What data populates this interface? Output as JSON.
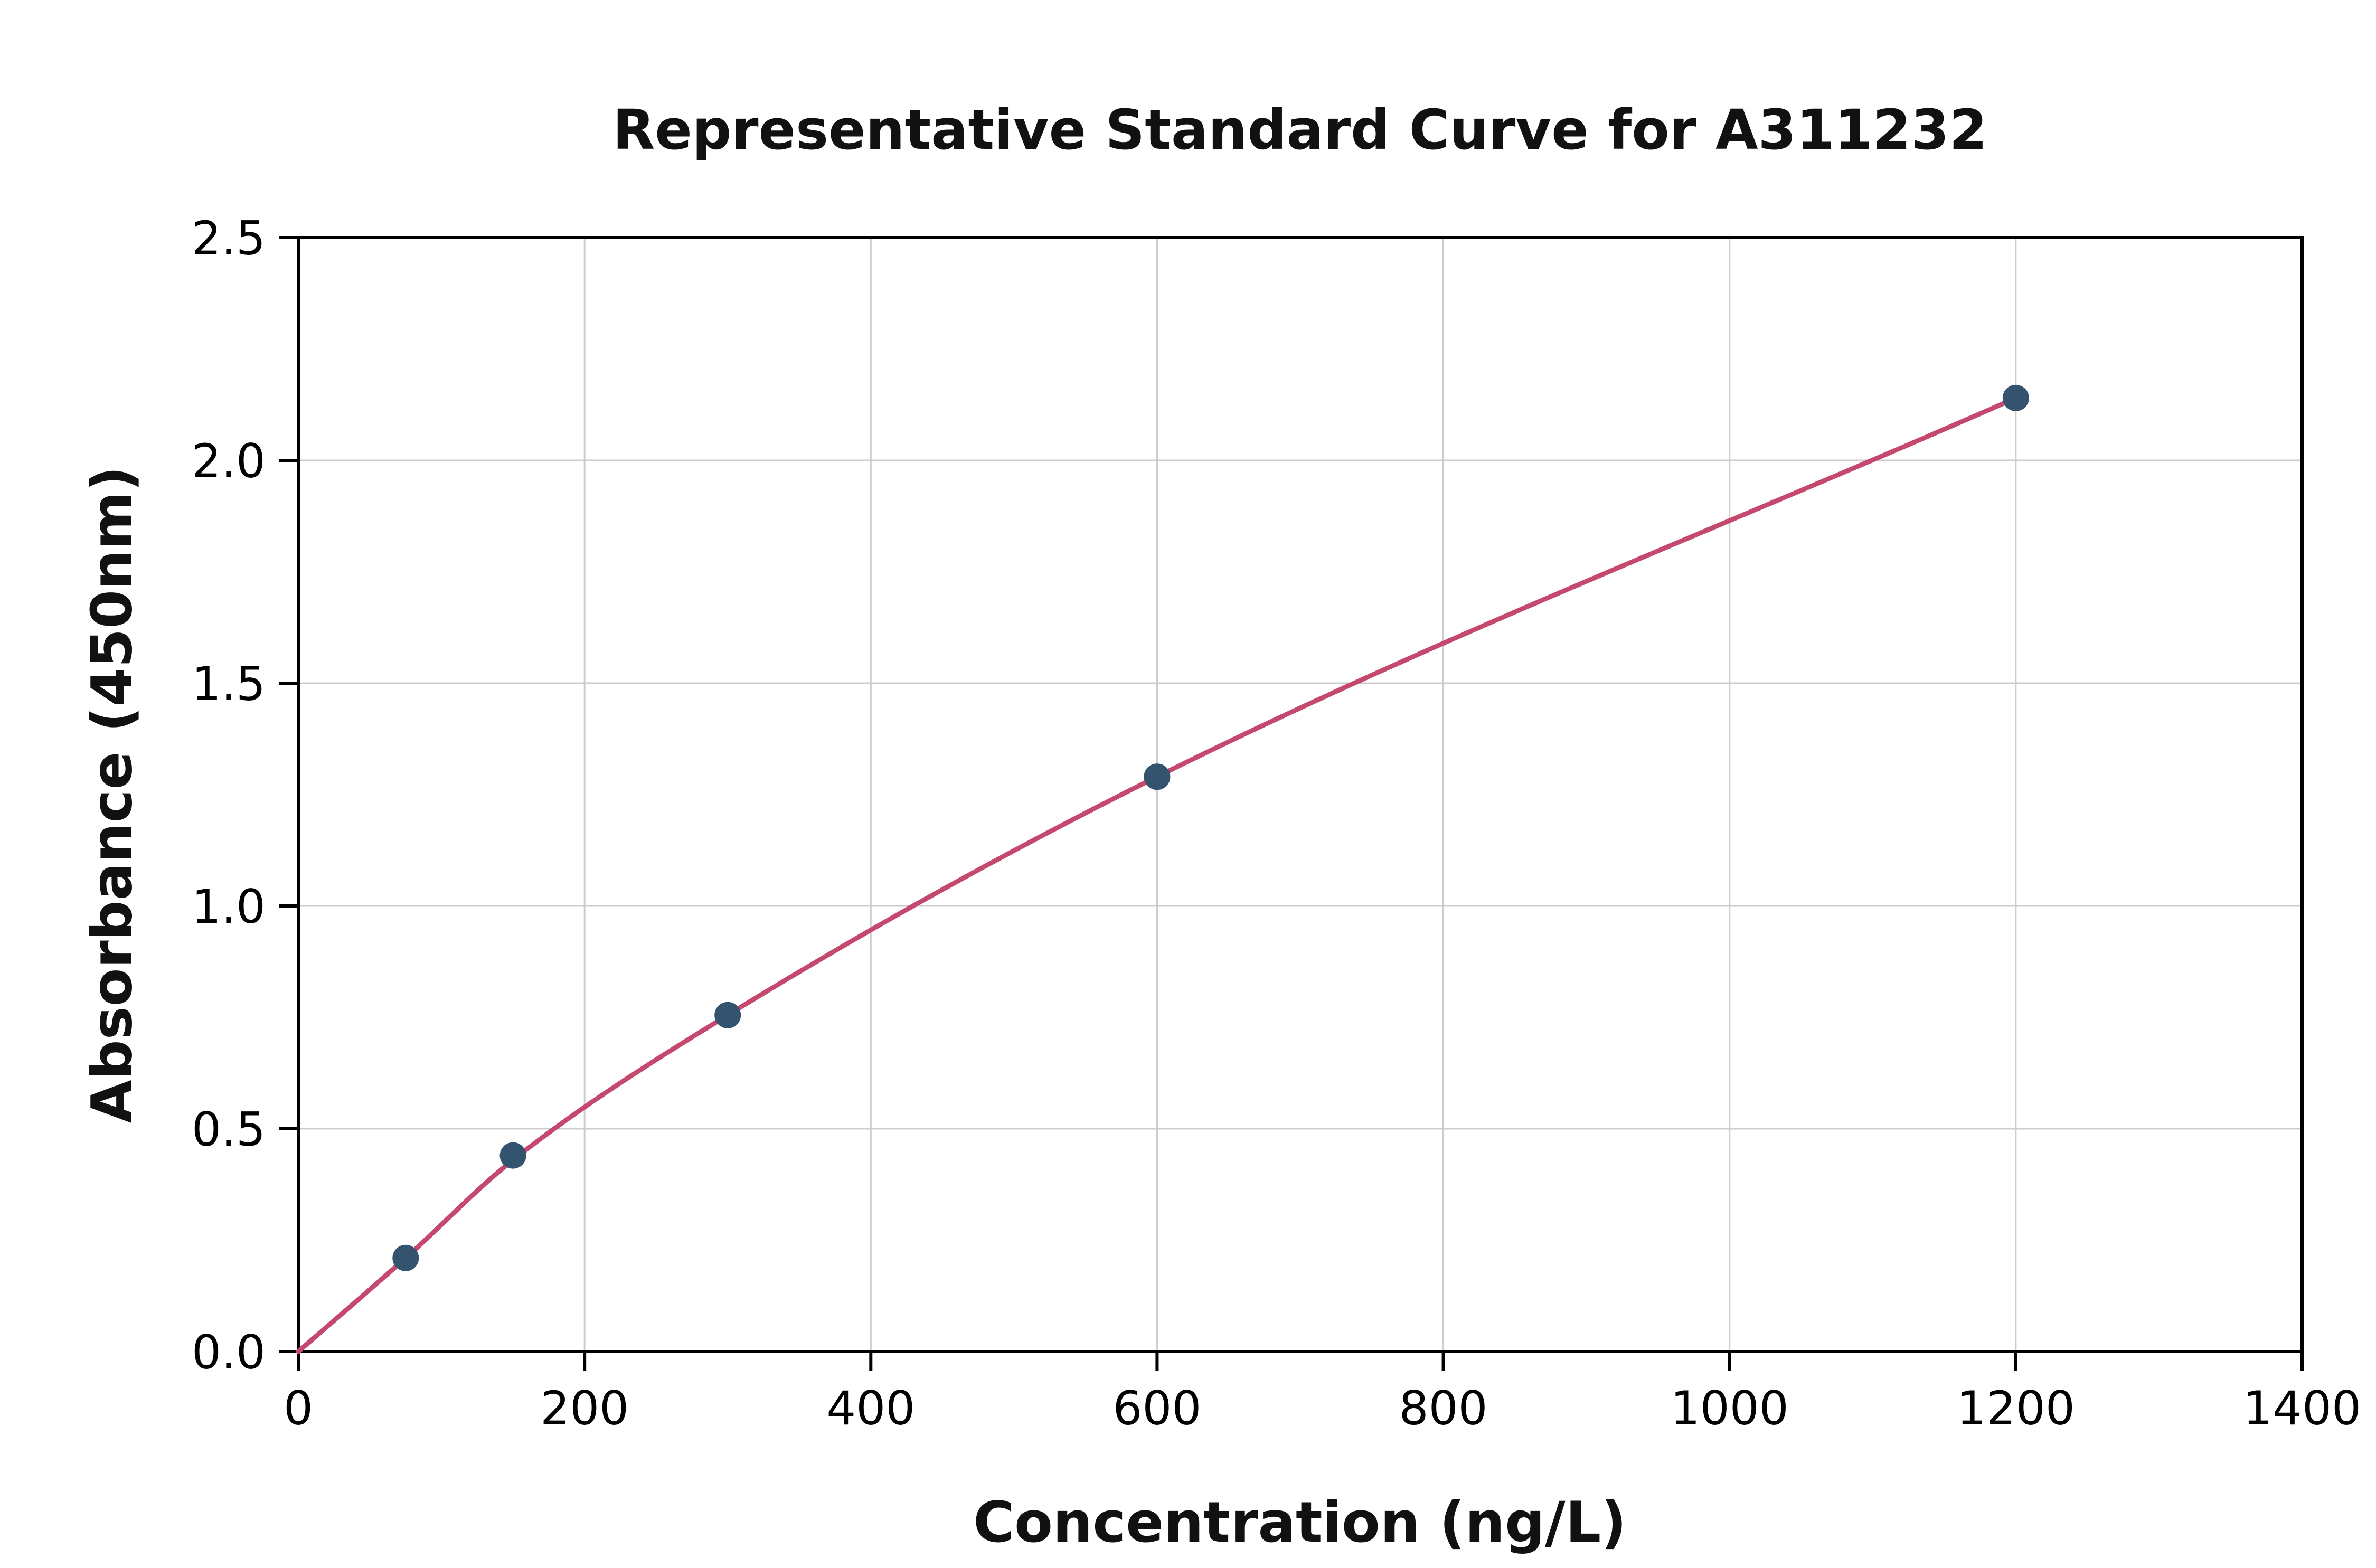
{
  "chart_data": {
    "type": "scatter",
    "title": "Representative Standard Curve for A311232",
    "xlabel": "Concentration (ng/L)",
    "ylabel": "Absorbance (450nm)",
    "xlim": [
      0,
      1400
    ],
    "ylim": [
      0,
      2.5
    ],
    "xtick_values": [
      0,
      200,
      400,
      600,
      800,
      1000,
      1200,
      1400
    ],
    "xtick_labels": [
      "0",
      "200",
      "400",
      "600",
      "800",
      "1000",
      "1200",
      "1400"
    ],
    "ytick_values": [
      0,
      0.5,
      1.0,
      1.5,
      2.0,
      2.5
    ],
    "ytick_labels": [
      "0.0",
      "0.5",
      "1.0",
      "1.5",
      "2.0",
      "2.5"
    ],
    "points": {
      "x": [
        75,
        150,
        300,
        600,
        1200
      ],
      "y": [
        0.21,
        0.44,
        0.755,
        1.29,
        2.14
      ]
    },
    "curve": {
      "x": [
        0,
        75,
        150,
        300,
        600,
        1200
      ],
      "y": [
        0,
        0.21,
        0.43,
        0.755,
        1.29,
        2.14
      ]
    },
    "grid": true,
    "legend": "none",
    "colors": {
      "curve": "#c5496f",
      "points": "#34536f",
      "grid": "#cccccc",
      "axis": "#000000",
      "background": "#ffffff"
    }
  }
}
